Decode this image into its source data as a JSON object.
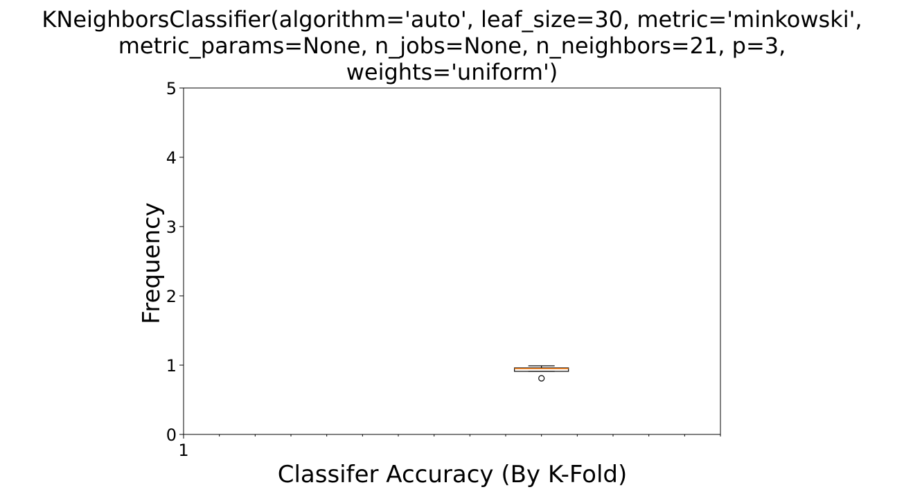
{
  "chart_data": {
    "type": "boxplot",
    "title_lines": [
      "KNeighborsClassifier(algorithm='auto', leaf_size=30, metric='minkowski',",
      "metric_params=None, n_jobs=None, n_neighbors=21, p=3,",
      "weights='uniform')"
    ],
    "xlabel": "Classifer Accuracy (By K-Fold)",
    "ylabel": "Frequency",
    "ylim": [
      0,
      5
    ],
    "yticks": [
      0,
      1,
      2,
      3,
      4,
      5
    ],
    "xticklabels": [
      "1"
    ],
    "grid": false,
    "box": {
      "whisker_low": 0.91,
      "q1": 0.91,
      "median": 0.95,
      "q3": 0.96,
      "whisker_high": 0.99,
      "outliers": [
        0.81
      ]
    },
    "colors": {
      "box": "#000000",
      "median": "#ff7f0e",
      "axes": "#000000"
    }
  }
}
